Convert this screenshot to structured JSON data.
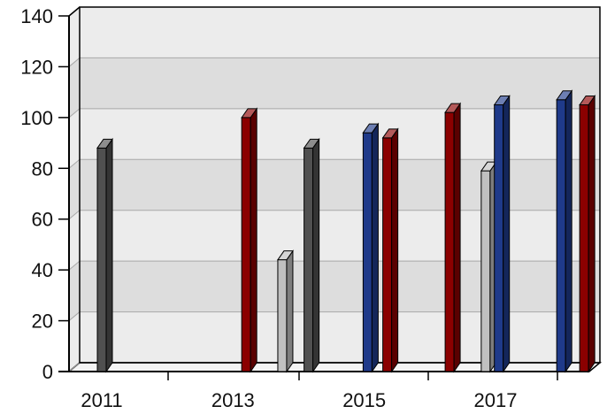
{
  "chart_data": {
    "type": "bar",
    "three_d": true,
    "ylim": [
      0,
      140
    ],
    "yticks": [
      0,
      20,
      40,
      60,
      80,
      100,
      120,
      140
    ],
    "xticks": [
      "2011",
      "2013",
      "2015",
      "2017"
    ],
    "grid": true,
    "colors": {
      "dark_gray": "#505050",
      "red": "#8b0000",
      "light_gray": "#c0c0c0",
      "blue": "#1f3a8a",
      "band_light": "#ececec",
      "band_dark": "#dddddd"
    },
    "bars": [
      {
        "x": 2011.0,
        "value": 88,
        "color": "dark_gray"
      },
      {
        "x": 2013.2,
        "value": 100,
        "color": "red"
      },
      {
        "x": 2013.75,
        "value": 44,
        "color": "light_gray"
      },
      {
        "x": 2014.15,
        "value": 88,
        "color": "dark_gray"
      },
      {
        "x": 2015.05,
        "value": 94,
        "color": "blue"
      },
      {
        "x": 2015.35,
        "value": 92,
        "color": "red"
      },
      {
        "x": 2016.3,
        "value": 102,
        "color": "red"
      },
      {
        "x": 2016.85,
        "value": 79,
        "color": "light_gray"
      },
      {
        "x": 2017.05,
        "value": 105,
        "color": "blue"
      },
      {
        "x": 2018.0,
        "value": 107,
        "color": "blue"
      },
      {
        "x": 2018.35,
        "value": 105,
        "color": "red"
      }
    ]
  }
}
